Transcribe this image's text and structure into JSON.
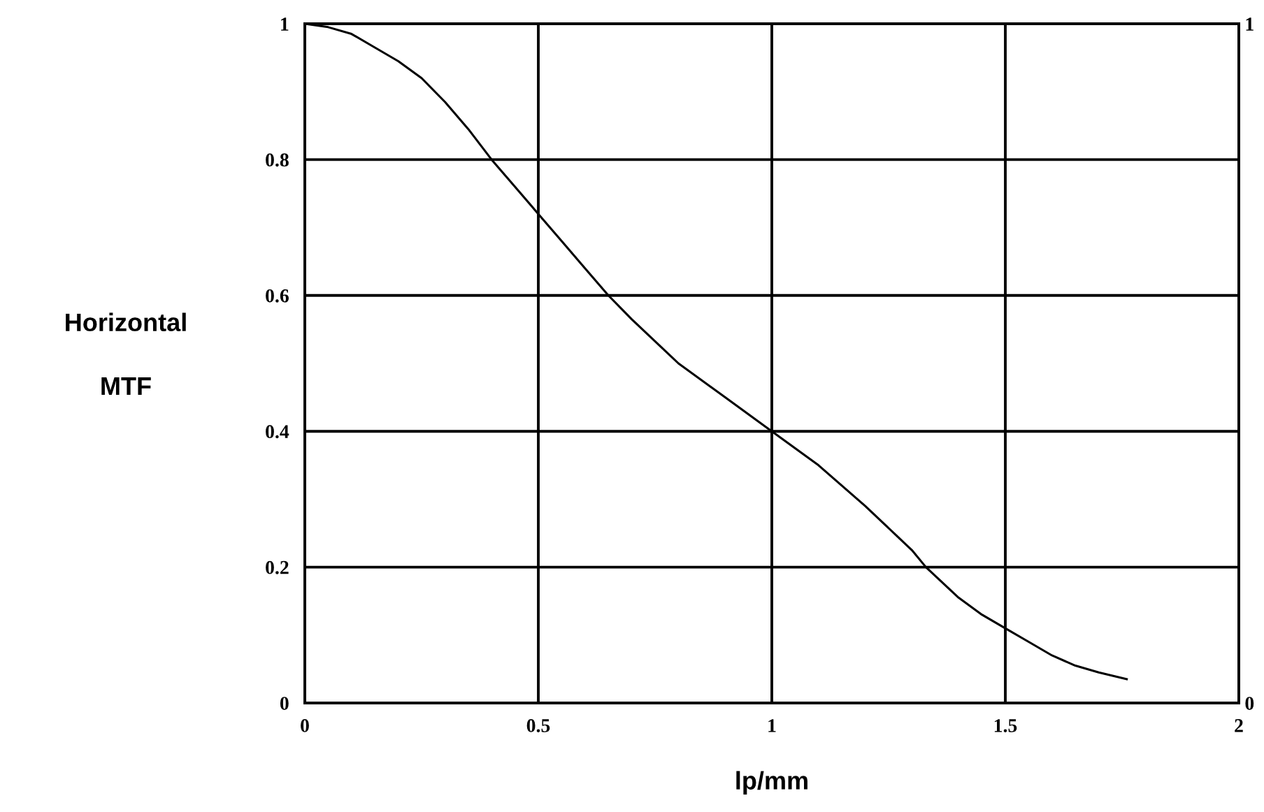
{
  "chart_data": {
    "type": "line",
    "xlabel": "lp/mm",
    "ylabel": "Horizontal\nMTF",
    "x": [
      0,
      0.05,
      0.1,
      0.15,
      0.2,
      0.25,
      0.3,
      0.35,
      0.4,
      0.45,
      0.5,
      0.55,
      0.6,
      0.65,
      0.7,
      0.8,
      0.9,
      1.0,
      1.1,
      1.2,
      1.3,
      1.33,
      1.4,
      1.45,
      1.5,
      1.55,
      1.6,
      1.65,
      1.7,
      1.76
    ],
    "series": [
      {
        "color": "#000000",
        "values": [
          1.0,
          0.995,
          0.985,
          0.965,
          0.945,
          0.92,
          0.885,
          0.845,
          0.8,
          0.76,
          0.72,
          0.68,
          0.64,
          0.6,
          0.565,
          0.5,
          0.45,
          0.4,
          0.35,
          0.29,
          0.225,
          0.2,
          0.155,
          0.13,
          0.11,
          0.09,
          0.07,
          0.055,
          0.045,
          0.035
        ]
      }
    ],
    "xlim": [
      0,
      2
    ],
    "xticks": [
      0,
      0.5,
      1,
      1.5,
      2
    ],
    "ylim": [
      0,
      1
    ],
    "yticks": [
      0,
      0.2,
      0.4,
      0.6,
      0.8,
      1
    ],
    "y2lim": [
      0,
      1
    ],
    "y2ticks": [
      0,
      1
    ],
    "grid": true,
    "marker": "none",
    "line_style": "solid"
  }
}
